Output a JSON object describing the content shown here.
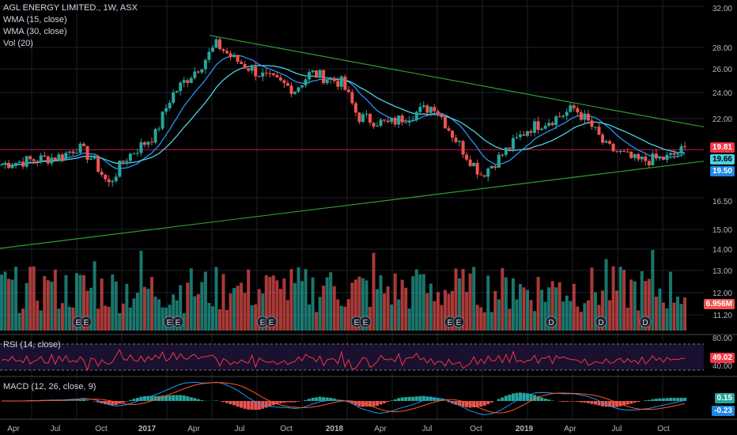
{
  "header": {
    "symbol_line": "AGL ENERGY LIMITED., 1W, ASX",
    "indicators": [
      "WMA (15, close)",
      "WMA (30, close)",
      "Vol (20)"
    ]
  },
  "rsi_label": "RSI (14, close)",
  "macd_label": "MACD (12, 26, close, 9)",
  "price_axis_ticks": [
    "32.00",
    "28.00",
    "26.00",
    "24.00",
    "22.00",
    "16.50",
    "15.00",
    "14.00",
    "13.00",
    "12.00",
    "11.20"
  ],
  "rsi_axis_ticks": [
    "80.00",
    "40.00"
  ],
  "badges": {
    "last_price": "19.81",
    "wma15": "19.66",
    "wma30": "19.50",
    "hidden_tick": "18.50",
    "volume": "6.956M",
    "rsi": "49.02",
    "macd": "0.15",
    "signal": "-0.23"
  },
  "time_axis": [
    "Apr",
    "Jul",
    "Oct",
    "2017",
    "Apr",
    "Jul",
    "Oct",
    "2018",
    "Apr",
    "Jul",
    "Oct",
    "2019",
    "Apr",
    "Jul",
    "Oct"
  ],
  "event_markers": [
    "E",
    "E",
    "E",
    "E",
    "E",
    "E",
    "E",
    "E",
    "E",
    "E",
    "D",
    "D",
    "D"
  ],
  "colors": {
    "up": "#26a69a",
    "down": "#ef5350",
    "wma15": "#2196f3",
    "wma30": "#4dd0e1",
    "trendline": "#2e9e2e",
    "hline": "#c2185b",
    "rsi": "#f23645",
    "macd": "#2196f3",
    "signal": "#ff5722"
  },
  "chart_data": {
    "type": "candlestick",
    "title": "AGL ENERGY LIMITED., 1W, ASX",
    "x_range": [
      "2016-03",
      "2019-11"
    ],
    "price_scale": "log",
    "key_points": [
      {
        "x": "2016-03",
        "close": 18.9
      },
      {
        "x": "2016-07",
        "close": 19.4
      },
      {
        "x": "2016-08",
        "close": 20.0
      },
      {
        "x": "2016-09",
        "close": 19.2
      },
      {
        "x": "2016-10",
        "close": 17.7
      },
      {
        "x": "2016-11",
        "close": 19.2
      },
      {
        "x": "2017-01",
        "close": 20.8
      },
      {
        "x": "2017-02",
        "close": 23.5
      },
      {
        "x": "2017-04",
        "close": 26.0
      },
      {
        "x": "2017-05",
        "close": 27.7
      },
      {
        "x": "2017-06",
        "close": 26.5
      },
      {
        "x": "2017-08",
        "close": 25.0
      },
      {
        "x": "2017-10",
        "close": 24.0
      },
      {
        "x": "2017-11",
        "close": 25.3
      },
      {
        "x": "2018-01",
        "close": 24.5
      },
      {
        "x": "2018-02",
        "close": 22.0
      },
      {
        "x": "2018-04",
        "close": 21.5
      },
      {
        "x": "2018-07",
        "close": 22.8
      },
      {
        "x": "2018-08",
        "close": 21.0
      },
      {
        "x": "2018-09",
        "close": 19.5
      },
      {
        "x": "2018-10",
        "close": 18.3
      },
      {
        "x": "2018-11",
        "close": 19.2
      },
      {
        "x": "2019-01",
        "close": 21.2
      },
      {
        "x": "2019-03",
        "close": 22.0
      },
      {
        "x": "2019-04",
        "close": 22.6
      },
      {
        "x": "2019-05",
        "close": 21.5
      },
      {
        "x": "2019-06",
        "close": 20.0
      },
      {
        "x": "2019-08",
        "close": 19.1
      },
      {
        "x": "2019-10",
        "close": 19.3
      },
      {
        "x": "2019-11",
        "close": 19.81
      }
    ],
    "last": {
      "close": 19.81,
      "wma15": 19.66,
      "wma30": 19.5,
      "volume": "6.956M",
      "rsi": 49.02,
      "macd": 0.15,
      "signal": -0.23
    },
    "hline_price": 19.81
  }
}
